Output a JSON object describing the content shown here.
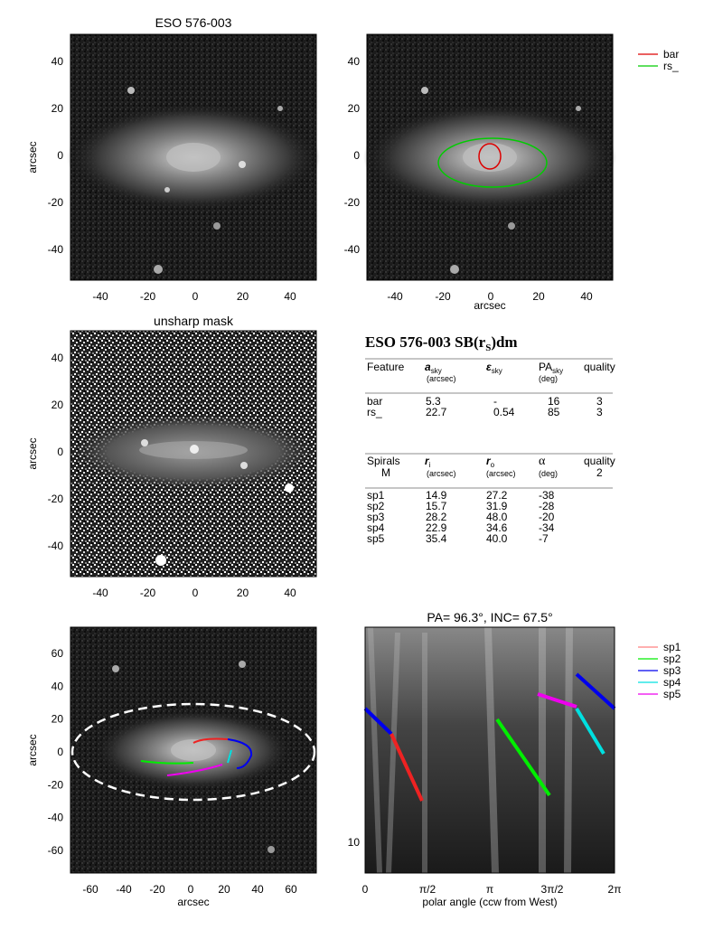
{
  "panel1": {
    "title": "ESO 576-003",
    "ylabel": "arcsec",
    "xticks": [
      "-40",
      "-20",
      "0",
      "20",
      "40"
    ],
    "yticks": [
      "40",
      "20",
      "0",
      "-20",
      "-40"
    ]
  },
  "panel2": {
    "xlabel": "arcsec",
    "xticks": [
      "-40",
      "-20",
      "0",
      "20",
      "40"
    ],
    "legend": [
      {
        "label": "bar",
        "color": "#dd0000"
      },
      {
        "label": "rs_",
        "color": "#00cc00"
      }
    ]
  },
  "panel3": {
    "title": "unsharp mask",
    "ylabel": "arcsec",
    "xticks": [
      "-40",
      "-20",
      "0",
      "20",
      "40"
    ],
    "yticks": [
      "40",
      "20",
      "0",
      "-20",
      "-40"
    ]
  },
  "panel5": {
    "xlabel": "arcsec",
    "ylabel": "arcsec",
    "xticks": [
      "-60",
      "-40",
      "-20",
      "0",
      "20",
      "40",
      "60"
    ],
    "yticks": [
      "60",
      "40",
      "20",
      "0",
      "-20",
      "-40",
      "-60"
    ]
  },
  "panel6": {
    "title": "PA=  96.3°, INC=  67.5°",
    "xlabel": "polar angle (ccw from West)",
    "xticks": [
      "0",
      "π/2",
      "π",
      "3π/2",
      "2π"
    ],
    "ytick": "10",
    "legend": [
      {
        "label": "sp1",
        "color": "#ff8080"
      },
      {
        "label": "sp2",
        "color": "#00ee00"
      },
      {
        "label": "sp3",
        "color": "#0000ee"
      },
      {
        "label": "sp4",
        "color": "#00e0e0"
      },
      {
        "label": "sp5",
        "color": "#ee00ee"
      }
    ]
  },
  "table": {
    "title": "ESO  576-003  SB(r",
    "title_sub": "S",
    "title_end": ")dm",
    "h1": {
      "c1": "Feature",
      "c2": "a",
      "c2sub": "sky",
      "c2unit": "(arcsec)",
      "c3": "ε",
      "c3sub": "sky",
      "c4": "PA",
      "c4sub": "sky",
      "c4unit": "(deg)",
      "c5": "quality"
    },
    "features": [
      {
        "name": "bar",
        "a": "5.3",
        "e": "-",
        "pa": "16",
        "q": "3"
      },
      {
        "name": "rs_",
        "a": "22.7",
        "e": "0.54",
        "pa": "85",
        "q": "3"
      }
    ],
    "h2": {
      "c1": "Spirals",
      "c1b": "M",
      "c2": "r",
      "c2sub": "i",
      "c2unit": "(arcsec)",
      "c3": "r",
      "c3sub": "o",
      "c3unit": "(arcsec)",
      "c4": "α",
      "c4unit": "(deg)",
      "c5": "quality",
      "c5b": "2"
    },
    "spirals": [
      {
        "name": "sp1",
        "ri": "14.9",
        "ro": "27.2",
        "alpha": "-38"
      },
      {
        "name": "sp2",
        "ri": "15.7",
        "ro": "31.9",
        "alpha": "-28"
      },
      {
        "name": "sp3",
        "ri": "28.2",
        "ro": "48.0",
        "alpha": "-20"
      },
      {
        "name": "sp4",
        "ri": "22.9",
        "ro": "34.6",
        "alpha": "-34"
      },
      {
        "name": "sp5",
        "ri": "35.4",
        "ro": "40.0",
        "alpha": "-7"
      }
    ]
  }
}
